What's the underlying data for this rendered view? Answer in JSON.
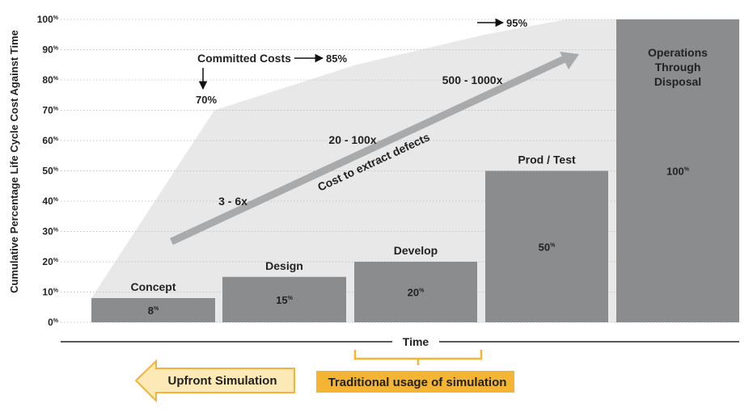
{
  "chart_data": {
    "type": "bar",
    "ylabel": "Cumulative Percentage Life Cycle Cost Against Time",
    "xlabel": "Time",
    "ylim": [
      0,
      100
    ],
    "y_ticks": [
      "0%",
      "10%",
      "20%",
      "30%",
      "40%",
      "50%",
      "60%",
      "70%",
      "80%",
      "90%",
      "100%"
    ],
    "grid": "horizontal dotted",
    "bar_color": "#8b8c8e",
    "area_color": "#e8e8e8",
    "categories": [
      "Concept",
      "Design",
      "Develop",
      "Prod / Test",
      "Operations Through Disposal"
    ],
    "values": [
      8,
      15,
      20,
      50,
      100
    ],
    "value_labels": [
      "8%",
      "15%",
      "20%",
      "50%",
      "100%"
    ],
    "committed_costs": {
      "name": "Committed Costs",
      "points": [
        {
          "x": "Concept",
          "y": 8
        },
        {
          "x": "Concept/Design boundary",
          "y": 70
        },
        {
          "x": "Develop",
          "y": 85
        },
        {
          "x": "Prod / Test",
          "y": 95
        },
        {
          "x": "Operations Through Disposal",
          "y": 100
        }
      ]
    },
    "annotations": {
      "committed_costs_label": "Committed Costs",
      "cc_70": "70%",
      "cc_85": "85%",
      "cc_95": "95%",
      "defect_arrow_label": "Cost to extract defects",
      "mult_1": "3 - 6x",
      "mult_2": "20 - 100x",
      "mult_3": "500 - 1000x",
      "upfront": "Upfront Simulation",
      "traditional": "Traditional usage of simulation"
    },
    "colors": {
      "accent_orange": "#f5b534",
      "upfront_arrow_fill": "#fde9b6",
      "upfront_arrow_stroke": "#f0b340",
      "diagonal_arrow": "#a9aaac"
    }
  }
}
